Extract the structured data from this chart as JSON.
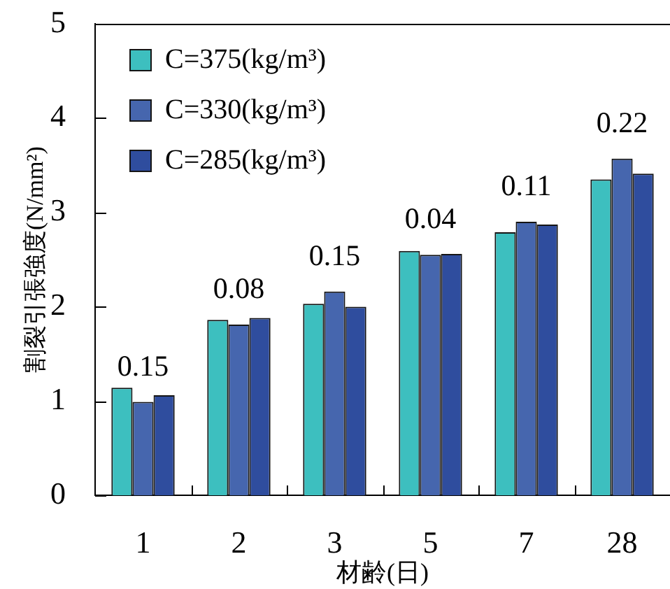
{
  "chart_data": {
    "type": "bar",
    "xlabel": "材齢(日)",
    "ylabel": "割裂引張強度(N/mm²)",
    "categories": [
      "1",
      "2",
      "3",
      "5",
      "7",
      "28"
    ],
    "series": [
      {
        "name": "C=375(kg/m³)",
        "color": "#3dbfbf",
        "values": [
          1.14,
          1.86,
          2.03,
          2.59,
          2.79,
          3.35
        ]
      },
      {
        "name": "C=330(kg/m³)",
        "color": "#4666ae",
        "values": [
          0.99,
          1.81,
          2.16,
          2.55,
          2.9,
          3.57
        ]
      },
      {
        "name": "C=285(kg/m³)",
        "color": "#2f4d9e",
        "values": [
          1.06,
          1.88,
          2.0,
          2.56,
          2.87,
          3.41
        ]
      }
    ],
    "ylim": [
      0,
      5
    ],
    "yticks": [
      0,
      1,
      2,
      3,
      4,
      5
    ],
    "grid": false,
    "legend": "top left",
    "annotations": [
      {
        "text": "0.15",
        "x": "1",
        "y": 0.99
      },
      {
        "text": "0.08",
        "x": "2",
        "y": 1.81
      },
      {
        "text": "0.15",
        "x": "3",
        "y": 2.16
      },
      {
        "text": "0.04",
        "x": "5",
        "y": 2.55
      },
      {
        "text": "0.11",
        "x": "7",
        "y": 2.9
      },
      {
        "text": "0.22",
        "x": "28",
        "y": 3.57
      }
    ]
  }
}
